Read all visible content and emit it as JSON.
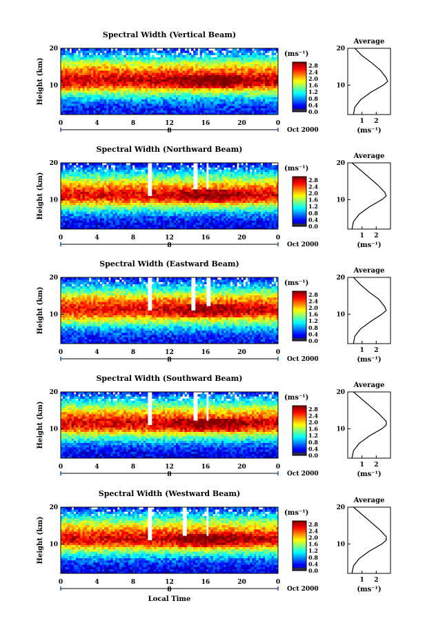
{
  "chart_data": [
    {
      "type": "heatmap",
      "title": "Spectral Width (Vertical Beam)",
      "ylabel": "Height (km)",
      "xlabel": "",
      "x_ticks": [
        "0",
        "4",
        "8",
        "12",
        "16",
        "20",
        "0"
      ],
      "y_ticks": [
        "20",
        "10"
      ],
      "date_label": "Oct 2000",
      "day_label": "8",
      "colorbar": {
        "unit": "(ms⁻¹)",
        "ticks": [
          "2.8",
          "2.4",
          "2.0",
          "1.6",
          "1.2",
          "0.8",
          "0.4",
          "0.0"
        ],
        "range": [
          0.0,
          3.0
        ]
      },
      "xlim": [
        0,
        24
      ],
      "ylim": [
        2,
        20
      ],
      "profile": {
        "title": "Average",
        "xlabel": "(ms⁻¹)",
        "x_ticks": [
          "1",
          "2"
        ],
        "y_ticks": [
          "20",
          "10"
        ],
        "height_km": [
          20,
          18,
          16,
          14,
          12,
          11,
          10,
          8,
          6,
          4,
          2
        ],
        "width_ms": [
          0.5,
          1.0,
          1.7,
          2.3,
          2.7,
          2.8,
          2.5,
          1.6,
          0.9,
          0.5,
          0.4
        ]
      },
      "gaps": []
    },
    {
      "type": "heatmap",
      "title": "Spectral Width (Northward Beam)",
      "ylabel": "Height (km)",
      "xlabel": "",
      "x_ticks": [
        "0",
        "4",
        "8",
        "12",
        "16",
        "20",
        "0"
      ],
      "y_ticks": [
        "20",
        "10"
      ],
      "date_label": "Oct 2000",
      "day_label": "8",
      "colorbar": {
        "unit": "(ms⁻¹)",
        "ticks": [
          "2.8",
          "2.4",
          "2.0",
          "1.6",
          "1.2",
          "0.8",
          "0.4",
          "0.0"
        ],
        "range": [
          0.0,
          3.0
        ]
      },
      "xlim": [
        0,
        24
      ],
      "ylim": [
        2,
        20
      ],
      "profile": {
        "title": "Average",
        "xlabel": "(ms⁻¹)",
        "x_ticks": [
          "1",
          "2"
        ],
        "y_ticks": [
          "20",
          "10"
        ],
        "height_km": [
          20,
          18,
          16,
          14,
          12,
          11,
          10,
          8,
          6,
          4,
          2
        ],
        "width_ms": [
          0.3,
          0.9,
          1.5,
          2.1,
          2.6,
          2.7,
          2.4,
          1.5,
          0.8,
          0.4,
          0.3
        ]
      },
      "gaps": [
        {
          "t0": 9.6,
          "t1": 10.1,
          "h0": 11,
          "h1": 20
        },
        {
          "t0": 14.6,
          "t1": 15.0,
          "h0": 13,
          "h1": 20
        },
        {
          "t0": 16.0,
          "t1": 16.4,
          "h0": 13,
          "h1": 20
        }
      ]
    },
    {
      "type": "heatmap",
      "title": "Spectral Width (Eastward Beam)",
      "ylabel": "Height (km)",
      "xlabel": "",
      "x_ticks": [
        "0",
        "4",
        "8",
        "12",
        "16",
        "20",
        "0"
      ],
      "y_ticks": [
        "20",
        "10"
      ],
      "date_label": "Oct 2000",
      "day_label": "8",
      "colorbar": {
        "unit": "(ms⁻¹)",
        "ticks": [
          "2.8",
          "2.4",
          "2.0",
          "1.6",
          "1.2",
          "0.8",
          "0.4",
          "0.0"
        ],
        "range": [
          0.0,
          3.0
        ]
      },
      "xlim": [
        0,
        24
      ],
      "ylim": [
        2,
        20
      ],
      "profile": {
        "title": "Average",
        "xlabel": "(ms⁻¹)",
        "x_ticks": [
          "1",
          "2"
        ],
        "y_ticks": [
          "20",
          "10"
        ],
        "height_km": [
          20,
          18,
          16,
          14,
          12,
          11,
          10,
          8,
          6,
          4,
          2
        ],
        "width_ms": [
          0.4,
          0.9,
          1.5,
          2.2,
          2.6,
          2.7,
          2.4,
          1.6,
          0.9,
          0.5,
          0.4
        ]
      },
      "gaps": [
        {
          "t0": 9.6,
          "t1": 10.1,
          "h0": 11,
          "h1": 20
        },
        {
          "t0": 14.4,
          "t1": 14.8,
          "h0": 11,
          "h1": 20
        },
        {
          "t0": 16.1,
          "t1": 16.5,
          "h0": 12,
          "h1": 20
        }
      ]
    },
    {
      "type": "heatmap",
      "title": "Spectral Width (Southward Beam)",
      "ylabel": "Height (km)",
      "xlabel": "",
      "x_ticks": [
        "0",
        "4",
        "8",
        "12",
        "16",
        "20",
        "0"
      ],
      "y_ticks": [
        "20",
        "10"
      ],
      "date_label": "Oct 2000",
      "day_label": "8",
      "colorbar": {
        "unit": "(ms⁻¹)",
        "ticks": [
          "2.8",
          "2.4",
          "2.0",
          "1.6",
          "1.2",
          "0.8",
          "0.4",
          "0.0"
        ],
        "range": [
          0.0,
          3.0
        ]
      },
      "xlim": [
        0,
        24
      ],
      "ylim": [
        2,
        20
      ],
      "profile": {
        "title": "Average",
        "xlabel": "(ms⁻¹)",
        "x_ticks": [
          "1",
          "2"
        ],
        "y_ticks": [
          "20",
          "10"
        ],
        "height_km": [
          20,
          18,
          16,
          14,
          12,
          11,
          10,
          8,
          6,
          4,
          2
        ],
        "width_ms": [
          0.4,
          1.0,
          1.6,
          2.2,
          2.7,
          2.7,
          2.4,
          1.5,
          0.8,
          0.4,
          0.3
        ]
      },
      "gaps": [
        {
          "t0": 9.6,
          "t1": 10.1,
          "h0": 11,
          "h1": 20
        },
        {
          "t0": 14.6,
          "t1": 15.0,
          "h0": 12,
          "h1": 20
        },
        {
          "t0": 16.0,
          "t1": 16.4,
          "h0": 12,
          "h1": 20
        }
      ]
    },
    {
      "type": "heatmap",
      "title": "Spectral Width (Westward Beam)",
      "ylabel": "Height (km)",
      "xlabel": "Local Time",
      "x_ticks": [
        "0",
        "4",
        "8",
        "12",
        "16",
        "20",
        "0"
      ],
      "y_ticks": [
        "20",
        "10"
      ],
      "date_label": "Oct 2000",
      "day_label": "8",
      "colorbar": {
        "unit": "(ms⁻¹)",
        "ticks": [
          "2.8",
          "2.4",
          "2.0",
          "1.6",
          "1.2",
          "0.8",
          "0.4",
          "0.0"
        ],
        "range": [
          0.0,
          3.0
        ]
      },
      "xlim": [
        0,
        24
      ],
      "ylim": [
        2,
        20
      ],
      "profile": {
        "title": "Average",
        "xlabel": "(ms⁻¹)",
        "x_ticks": [
          "1",
          "2"
        ],
        "y_ticks": [
          "20",
          "10"
        ],
        "height_km": [
          20,
          18,
          16,
          14,
          12,
          11,
          10,
          8,
          6,
          4,
          2
        ],
        "width_ms": [
          0.4,
          1.0,
          1.6,
          2.2,
          2.7,
          2.7,
          2.4,
          1.5,
          0.8,
          0.4,
          0.3
        ]
      },
      "gaps": [
        {
          "t0": 9.6,
          "t1": 10.1,
          "h0": 11,
          "h1": 20
        },
        {
          "t0": 13.4,
          "t1": 13.8,
          "h0": 12,
          "h1": 20
        },
        {
          "t0": 16.0,
          "t1": 16.4,
          "h0": 12,
          "h1": 20
        }
      ]
    }
  ]
}
